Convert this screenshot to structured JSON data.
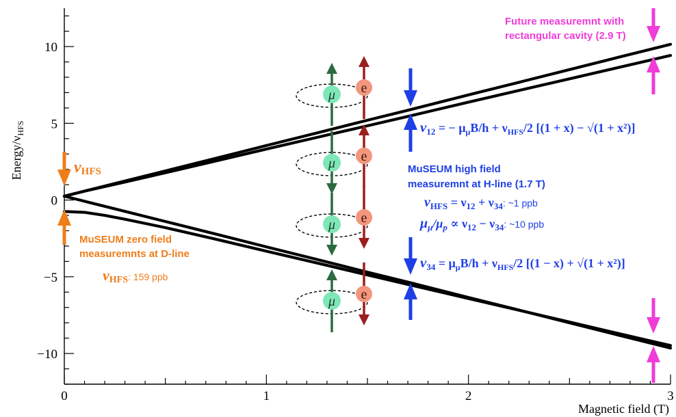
{
  "chart_data": {
    "type": "line",
    "xlabel": "Magnetic field (T)",
    "ylabel": "Energy/ν",
    "ylabel_sub": "HFS",
    "xlim": [
      0,
      3
    ],
    "ylim": [
      -12,
      12.5
    ],
    "x_ticks": [
      "0",
      "1",
      "2",
      "3"
    ],
    "y_ticks": [
      "10",
      "5",
      "0",
      "−5",
      "−10"
    ],
    "grid": false,
    "levels": {
      "x": [
        0,
        0.1,
        0.2,
        0.3,
        0.5,
        0.75,
        1.0,
        1.25,
        1.5,
        1.7,
        2.0,
        2.25,
        2.5,
        2.75,
        2.9,
        3.0
      ],
      "values": [
        [
          0.25,
          0.58,
          0.91,
          1.24,
          1.9,
          2.72,
          3.55,
          4.37,
          5.2,
          5.85,
          6.85,
          7.67,
          8.5,
          9.33,
          9.82,
          10.15
        ],
        [
          0.25,
          -0.08,
          -0.41,
          -0.74,
          -1.4,
          -2.22,
          -3.05,
          -3.87,
          -4.7,
          -5.35,
          -6.35,
          -7.17,
          -8.0,
          -8.83,
          -9.32,
          -9.65
        ],
        [
          0.25,
          0.58,
          0.88,
          1.17,
          1.78,
          2.55,
          3.32,
          4.08,
          4.84,
          5.45,
          6.38,
          7.14,
          7.9,
          8.66,
          9.12,
          9.42
        ],
        [
          -0.75,
          -0.8,
          -1.0,
          -1.25,
          -1.8,
          -2.55,
          -3.33,
          -4.1,
          -4.88,
          -5.5,
          -6.42,
          -7.18,
          -7.95,
          -8.72,
          -9.18,
          -9.48
        ]
      ]
    },
    "hfs_label": "ν",
    "hfs_sub": "HFS",
    "zero_field": {
      "title_line1": "MuSEUM zero field",
      "title_line2": "measuremnts at D-line",
      "precision_label": "ν",
      "precision_sub": "HFS",
      "precision_value": ": 159 ppb"
    },
    "high_field": {
      "title_line1": "MuSEUM high field",
      "title_line2": "measuremnt at H-line (1.7 T)",
      "sum_formula_a": "ν",
      "sum_formula_a_sub": "HFS",
      "sum_formula_b": " = ν",
      "sum_formula_b_sub": "12",
      "sum_formula_c": " + ν",
      "sum_formula_c_sub": "34",
      "sum_precision": ": ~1 ppb",
      "ratio_formula_a": "μ",
      "ratio_formula_a_sub": "μ",
      "ratio_formula_b": "/μ",
      "ratio_formula_b_sub": "p",
      "ratio_formula_c": " ∝ ν",
      "ratio_formula_c_sub": "12",
      "ratio_formula_d": " − ν",
      "ratio_formula_d_sub": "34",
      "ratio_precision": ": ~10 ppb"
    },
    "nu12": {
      "lhs": "ν",
      "lhs_sub": "12",
      "rhs": " = − μ",
      "rhs_sub": "μ",
      "rhs_b": "B/h + ν",
      "rhs_b_sub": "HFS",
      "rhs_c": "/2 [(1 + x) − √(1 + x²)]"
    },
    "nu34": {
      "lhs": "ν",
      "lhs_sub": "34",
      "rhs": " = μ",
      "rhs_sub": "μ",
      "rhs_b": "B/h + ν",
      "rhs_b_sub": "HFS",
      "rhs_c": "/2 [(1 − x) + √(1 + x²)]"
    },
    "future": {
      "line1": "Future measuremnt with",
      "line2": "rectangular cavity (2.9 T)"
    },
    "particles": {
      "muon_symbol": "μ",
      "electron_symbol": "e"
    },
    "colors": {
      "zero_field": "#ef7d1a",
      "high_field": "#1f3fe6",
      "future": "#f03cd8",
      "muon_fill": "#7fe7b7",
      "electron_fill": "#f2967e",
      "spin_green": "#2c6b3f",
      "spin_red": "#9b1f1f"
    }
  }
}
